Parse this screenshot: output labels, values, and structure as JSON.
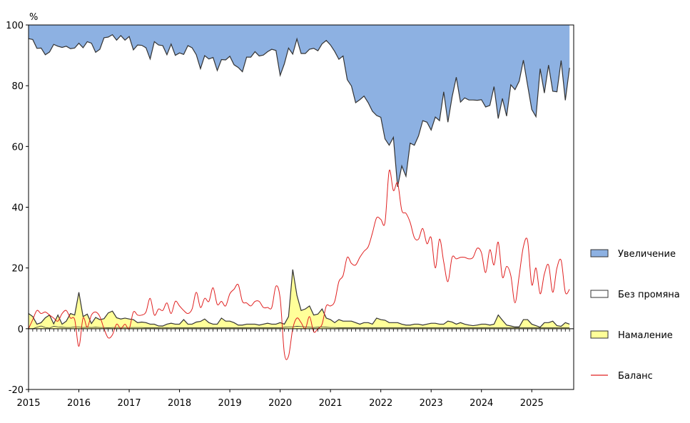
{
  "chart_data": {
    "type": "area",
    "unit_label": "%",
    "ylim": [
      -20,
      100
    ],
    "yticks": [
      -20,
      0,
      20,
      40,
      60,
      80,
      100
    ],
    "xlim": [
      2015,
      2025.833
    ],
    "xticks": [
      "2015",
      "2016",
      "2017",
      "2018",
      "2019",
      "2020",
      "2021",
      "2022",
      "2023",
      "2024",
      "2025"
    ],
    "grid": false,
    "legend_position": "right",
    "colors": {
      "increase": "#8db1e2",
      "no_change": "#ffffff",
      "decrease": "#ffff99",
      "balance": "#e02020",
      "outline": "#333333"
    },
    "legend": [
      {
        "key": "increase",
        "label": "Увеличение",
        "style": "box"
      },
      {
        "key": "no_change",
        "label": "Без промяна",
        "style": "box"
      },
      {
        "key": "decrease",
        "label": "Намаление",
        "style": "box"
      },
      {
        "key": "balance",
        "label": "Баланс",
        "style": "line"
      }
    ],
    "series": [
      {
        "name": "Увеличение",
        "key": "increase",
        "monthly": {
          "2015": [
            95.5,
            95.2,
            92.3,
            92.4,
            90.2,
            91.1,
            93.6,
            93.0,
            92.6,
            93.0,
            92.2,
            92.4
          ],
          "2016": [
            94.0,
            92.5,
            94.5,
            94.0,
            91.0,
            92.0,
            95.8,
            96.0,
            96.8,
            95.0,
            96.5,
            95.0
          ],
          "2017": [
            96.2,
            91.8,
            93.4,
            93.3,
            92.5,
            88.8,
            94.5,
            93.4,
            93.2,
            90.2,
            93.7,
            90.0
          ],
          "2018": [
            90.8,
            90.3,
            93.2,
            92.5,
            90.2,
            85.6,
            89.9,
            88.8,
            89.3,
            85.0,
            88.6,
            88.5
          ],
          "2019": [
            89.7,
            86.9,
            86.0,
            84.6,
            89.4,
            89.4,
            91.2,
            89.8,
            90.1,
            91.2,
            92.0,
            91.6
          ],
          "2020": [
            83.4,
            87.2,
            92.4,
            90.4,
            95.4,
            90.6,
            90.6,
            92.0,
            92.3,
            91.5,
            93.8,
            94.9
          ],
          "2021": [
            93.4,
            91.3,
            88.7,
            89.8,
            82.0,
            79.9,
            74.4,
            75.4,
            76.6,
            74.4,
            71.6,
            70.2
          ],
          "2022": [
            69.6,
            62.5,
            60.4,
            63.0,
            46.7,
            53.6,
            50.2,
            61.1,
            60.4,
            63.5,
            68.5,
            68.0
          ],
          "2023": [
            65.4,
            69.7,
            68.5,
            78.0,
            68.0,
            76.3,
            82.8,
            74.6,
            76.0,
            75.3,
            75.3,
            75.2
          ],
          "2024": [
            75.4,
            73.0,
            73.5,
            79.7,
            69.2,
            75.8,
            70.0,
            80.3,
            78.7,
            81.5,
            88.4,
            80.2
          ],
          "2025": [
            72.2,
            69.8,
            85.6,
            77.6,
            86.8,
            78.2,
            78.0,
            88.3,
            75.2,
            85.9
          ]
        }
      },
      {
        "name": "Без промяна",
        "key": "no_change",
        "monthly": {
          "2015": [
            0.0,
            0.0,
            0.5,
            0.9,
            0.4,
            0.2,
            0.8,
            0.6,
            0.5,
            0.4,
            0.4,
            0.6
          ],
          "2016": [
            0.6,
            0.4,
            0.5,
            0.4,
            0.5,
            0.4,
            0.4,
            0.3,
            0.4,
            0.4,
            0.4,
            0.4
          ],
          "2017": [
            0.4,
            0.4,
            0.4,
            0.4,
            0.3,
            0.3,
            0.3,
            0.3,
            0.4,
            0.3,
            0.4,
            0.3
          ],
          "2018": [
            0.3,
            0.3,
            0.3,
            0.3,
            0.3,
            0.3,
            0.3,
            0.3,
            0.3,
            0.3,
            0.3,
            0.3
          ],
          "2019": [
            0.3,
            0.3,
            0.3,
            0.3,
            0.3,
            0.3,
            0.3,
            0.3,
            0.3,
            0.3,
            0.3,
            0.3
          ],
          "2020": [
            0.3,
            0.5,
            0.6,
            0.6,
            0.8,
            0.7,
            0.6,
            0.5,
            0.4,
            0.5,
            0.6,
            0.5
          ],
          "2021": [
            0.4,
            0.4,
            0.3,
            0.3,
            0.3,
            0.3,
            0.3,
            0.3,
            0.3,
            0.3,
            0.3,
            0.3
          ],
          "2022": [
            0.3,
            0.3,
            0.3,
            0.3,
            0.3,
            0.3,
            0.3,
            0.3,
            0.3,
            0.3,
            0.3,
            0.3
          ],
          "2023": [
            0.3,
            0.3,
            0.3,
            0.3,
            0.3,
            0.3,
            0.3,
            0.3,
            0.3,
            0.3,
            0.3,
            0.3
          ],
          "2024": [
            0.3,
            0.3,
            0.3,
            0.3,
            0.3,
            0.3,
            0.3,
            0.3,
            0.3,
            0.3,
            0.3,
            0.3
          ],
          "2025": [
            0.3,
            0.3,
            0.3,
            0.3,
            0.3,
            0.3,
            0.3,
            0.3,
            0.3,
            0.3
          ]
        }
      },
      {
        "name": "Намаление",
        "key": "decrease",
        "monthly": {
          "2015": [
            5.0,
            4.0,
            1.5,
            2.0,
            3.6,
            4.5,
            1.6,
            4.5,
            1.5,
            2.5,
            5.0,
            4.5
          ],
          "2016": [
            12.0,
            4.0,
            4.8,
            1.7,
            3.7,
            3.0,
            3.3,
            5.2,
            5.8,
            3.6,
            3.2,
            3.5
          ],
          "2017": [
            3.2,
            3.0,
            2.0,
            2.2,
            2.0,
            1.5,
            1.5,
            0.9,
            0.9,
            1.5,
            1.8,
            1.5
          ],
          "2018": [
            1.5,
            3.0,
            1.5,
            1.5,
            2.2,
            2.4,
            3.2,
            2.0,
            1.5,
            1.5,
            3.5,
            2.5
          ],
          "2019": [
            2.5,
            2.0,
            1.2,
            1.2,
            1.5,
            1.5,
            1.5,
            1.2,
            1.5,
            1.8,
            1.5,
            1.5
          ],
          "2020": [
            2.0,
            1.5,
            4.0,
            19.5,
            11.0,
            6.0,
            6.5,
            7.5,
            4.5,
            4.8,
            6.5,
            3.5
          ],
          "2021": [
            3.0,
            2.0,
            3.0,
            2.5,
            2.5,
            2.5,
            2.0,
            1.5,
            2.0,
            2.0,
            1.5,
            3.5
          ],
          "2022": [
            3.0,
            2.8,
            2.0,
            2.0,
            2.0,
            1.5,
            1.2,
            1.2,
            1.5,
            1.5,
            1.2,
            1.5
          ],
          "2023": [
            1.8,
            1.8,
            1.5,
            1.5,
            2.5,
            2.2,
            1.5,
            2.0,
            1.5,
            1.2,
            1.0,
            1.2
          ],
          "2024": [
            1.5,
            1.5,
            1.2,
            1.5,
            4.5,
            2.8,
            1.2,
            0.9,
            0.6,
            0.6,
            3.0,
            3.0
          ],
          "2025": [
            1.5,
            1.0,
            0.5,
            2.0,
            2.0,
            2.5,
            1.0,
            0.8,
            2.0,
            1.5
          ]
        }
      },
      {
        "name": "Баланс",
        "key": "balance",
        "monthly": {
          "2015": [
            0.0,
            3.0,
            6.0,
            5.0,
            5.5,
            4.5,
            3.5,
            2.5,
            5.0,
            6.0,
            3.5,
            3.0
          ],
          "2016": [
            -5.8,
            3.5,
            0.5,
            4.5,
            5.5,
            4.0,
            0.0,
            -3.0,
            -2.0,
            1.5,
            0.0,
            1.5
          ],
          "2017": [
            0.0,
            5.5,
            4.5,
            4.5,
            5.5,
            10.0,
            4.5,
            6.5,
            6.0,
            8.5,
            5.0,
            9.0
          ],
          "2018": [
            7.5,
            6.0,
            5.0,
            6.5,
            12.0,
            7.0,
            10.0,
            9.0,
            13.5,
            8.0,
            9.0,
            7.5
          ],
          "2019": [
            11.5,
            13.0,
            14.5,
            9.0,
            8.5,
            7.5,
            9.0,
            9.0,
            7.0,
            7.0,
            7.0,
            14.0
          ],
          "2020": [
            10.0,
            -8.0,
            -9.0,
            0.0,
            3.5,
            2.0,
            0.0,
            4.0,
            -1.0,
            0.0,
            1.5,
            7.5
          ],
          "2021": [
            7.5,
            9.0,
            15.5,
            17.5,
            23.5,
            21.5,
            21.0,
            23.5,
            25.5,
            27.0,
            31.5,
            36.5
          ],
          "2022": [
            36.0,
            35.0,
            52.0,
            45.5,
            48.0,
            39.0,
            38.0,
            35.0,
            30.0,
            29.5,
            33.0,
            28.0
          ],
          "2023": [
            30.0,
            20.0,
            29.5,
            22.0,
            15.5,
            23.5,
            23.0,
            23.5,
            23.5,
            23.0,
            23.5,
            26.5
          ],
          "2024": [
            25.0,
            18.5,
            26.0,
            21.0,
            28.5,
            17.0,
            20.5,
            17.5,
            8.5,
            17.5,
            27.0,
            29.0
          ],
          "2025": [
            14.5,
            20.0,
            11.5,
            18.0,
            21.0,
            12.0,
            20.0,
            22.5,
            12.0,
            13.0
          ]
        }
      }
    ]
  }
}
